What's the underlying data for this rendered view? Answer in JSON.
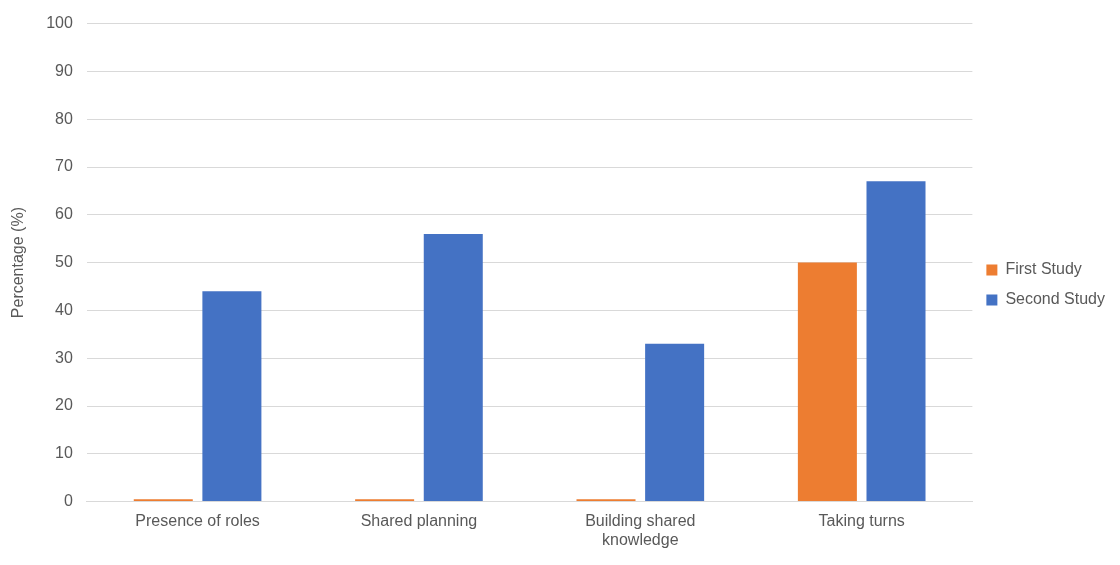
{
  "chart_data": {
    "type": "bar",
    "ylabel": "Percentage (%)",
    "categories": [
      "Presence of roles",
      "Shared planning",
      "Building shared knowledge",
      "Taking turns"
    ],
    "series": [
      {
        "name": "First Study",
        "color": "#ed7d31",
        "values": [
          0.5,
          0.5,
          0.5,
          50
        ]
      },
      {
        "name": "Second Study",
        "color": "#4472c4",
        "values": [
          44,
          56,
          33,
          67
        ]
      }
    ],
    "ylim": [
      0,
      100
    ],
    "yticks": [
      0,
      10,
      20,
      30,
      40,
      50,
      60,
      70,
      80,
      90,
      100
    ],
    "grid": "y",
    "legend": "right"
  }
}
